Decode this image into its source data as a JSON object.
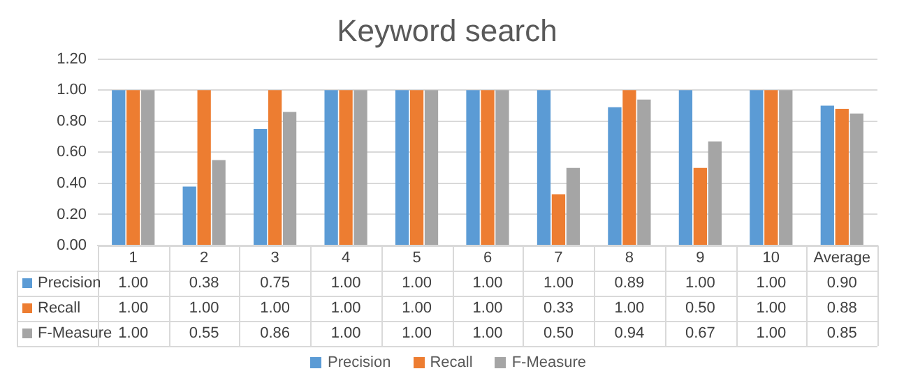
{
  "chart_data": {
    "type": "bar",
    "title": "Keyword search",
    "categories": [
      "1",
      "2",
      "3",
      "4",
      "5",
      "6",
      "7",
      "8",
      "9",
      "10",
      "Average"
    ],
    "series": [
      {
        "name": "Precision",
        "color": "#5b9bd5",
        "values": [
          1,
          0.38,
          0.75,
          1,
          1,
          1,
          1,
          0.89,
          1,
          1,
          0.9
        ],
        "value_labels": [
          "1.00",
          "0.38",
          "0.75",
          "1.00",
          "1.00",
          "1.00",
          "1.00",
          "0.89",
          "1.00",
          "1.00",
          "0.90"
        ]
      },
      {
        "name": "Recall",
        "color": "#ed7d31",
        "values": [
          1,
          1,
          1,
          1,
          1,
          1,
          0.33,
          1,
          0.5,
          1,
          0.88
        ],
        "value_labels": [
          "1.00",
          "1.00",
          "1.00",
          "1.00",
          "1.00",
          "1.00",
          "0.33",
          "1.00",
          "0.50",
          "1.00",
          "0.88"
        ]
      },
      {
        "name": "F-Measure",
        "color": "#a5a5a5",
        "values": [
          1,
          0.55,
          0.86,
          1,
          1,
          1,
          0.5,
          0.94,
          0.67,
          1,
          0.85
        ],
        "value_labels": [
          "1.00",
          "0.55",
          "0.86",
          "1.00",
          "1.00",
          "1.00",
          "0.50",
          "0.94",
          "0.67",
          "1.00",
          "0.85"
        ]
      }
    ],
    "ylim": [
      0,
      1.2
    ],
    "yticks": [
      {
        "value": 0,
        "label": "0.00"
      },
      {
        "value": 0.2,
        "label": "0.20"
      },
      {
        "value": 0.4,
        "label": "0.40"
      },
      {
        "value": 0.6,
        "label": "0.60"
      },
      {
        "value": 0.8,
        "label": "0.80"
      },
      {
        "value": 1,
        "label": "1.00"
      },
      {
        "value": 1.2,
        "label": "1.20"
      }
    ],
    "grid": "y",
    "legend": "bottom"
  }
}
